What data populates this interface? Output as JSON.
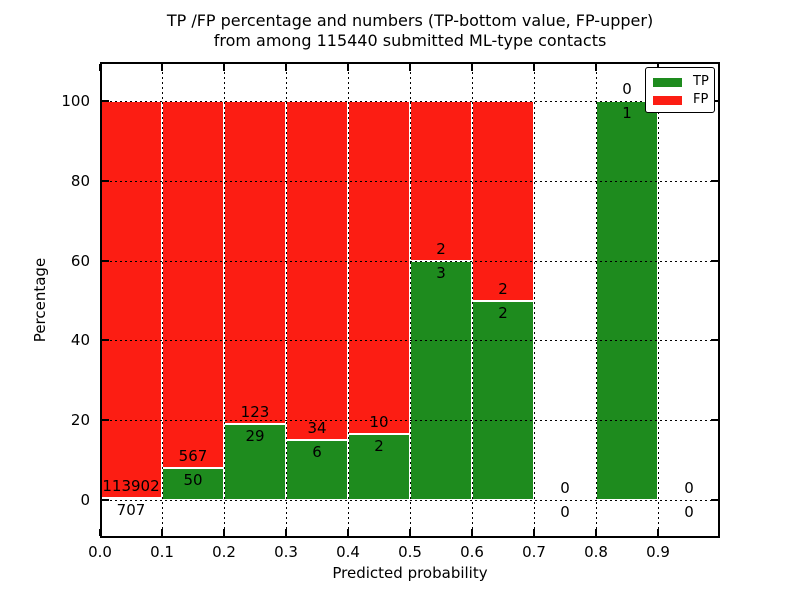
{
  "title": {
    "line1": "TP /FP percentage and numbers (TP-bottom value, FP-upper)",
    "line2": "from among 115440 submitted ML-type contacts"
  },
  "axes": {
    "xlabel": "Predicted probability",
    "ylabel": "Percentage"
  },
  "legend": {
    "position": "upper right",
    "items": [
      {
        "label": "TP",
        "color": "#1e8b1e"
      },
      {
        "label": "FP",
        "color": "#fc1d13"
      }
    ]
  },
  "colors": {
    "tp": "#1e8b1e",
    "fp": "#fc1d13",
    "grid": "#000000",
    "frame": "#000000",
    "bar_edge": "#ffffff",
    "background": "#ffffff",
    "text": "#000000"
  },
  "chart_data": {
    "type": "bar",
    "stacked": true,
    "normalized_to_percent": true,
    "title": "TP /FP percentage and numbers (TP-bottom value, FP-upper) from among 115440 submitted ML-type contacts",
    "xlabel": "Predicted probability",
    "ylabel": "Percentage",
    "total_contacts": 115440,
    "grid": true,
    "legend_position": "upper right",
    "xlim": [
      0.0,
      1.0
    ],
    "ylim": [
      -9.3,
      109.8
    ],
    "yticks": [
      0,
      20,
      40,
      60,
      80,
      100
    ],
    "xtick_labels": [
      "0.0",
      "0.1",
      "0.2",
      "0.3",
      "0.4",
      "0.5",
      "0.6",
      "0.7",
      "0.8",
      "0.9"
    ],
    "bin_edges": [
      0.0,
      0.1,
      0.2,
      0.3,
      0.4,
      0.5,
      0.6,
      0.7,
      0.8,
      0.9,
      1.0
    ],
    "series": [
      {
        "name": "TP",
        "color": "#1e8b1e",
        "counts": [
          707,
          50,
          29,
          6,
          2,
          3,
          2,
          0,
          1,
          0
        ]
      },
      {
        "name": "FP",
        "color": "#fc1d13",
        "counts": [
          113902,
          567,
          123,
          34,
          10,
          2,
          2,
          0,
          0,
          0
        ]
      }
    ],
    "tp_percent_by_bin": [
      0.62,
      8.1,
      19.08,
      15.0,
      16.67,
      60.0,
      50.0,
      null,
      100.0,
      null
    ]
  }
}
